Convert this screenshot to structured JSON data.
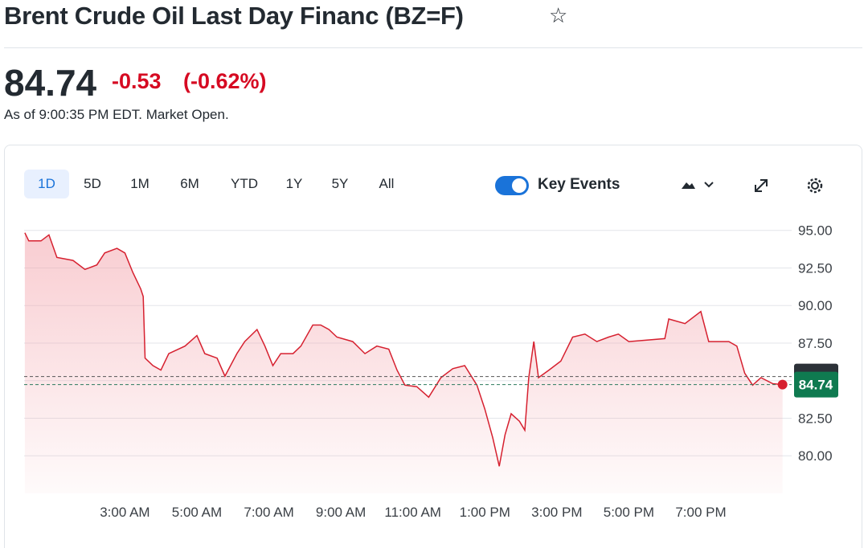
{
  "header": {
    "title": "Brent Crude Oil Last Day Financ (BZ=F)",
    "price": "84.74",
    "change": "-0.53",
    "change_percent": "(-0.62%)",
    "as_of": "As of 9:00:35 PM EDT. Market Open."
  },
  "toolbar": {
    "ranges": [
      "1D",
      "5D",
      "1M",
      "6M",
      "YTD",
      "1Y",
      "5Y",
      "All"
    ],
    "key_events": "Key Events"
  },
  "chart_data": {
    "type": "line",
    "color": "#d6202f",
    "grid": true,
    "series": [
      {
        "name": "BZ=F",
        "color": "#d6202f",
        "x": [
          0.22,
          0.33,
          0.67,
          0.89,
          1.11,
          1.56,
          1.89,
          2.22,
          2.44,
          2.78,
          3.0,
          3.22,
          3.44,
          3.51,
          3.56,
          3.78,
          4.0,
          4.22,
          4.67,
          5.0,
          5.22,
          5.56,
          5.78,
          6.11,
          6.33,
          6.67,
          6.89,
          7.11,
          7.33,
          7.67,
          7.89,
          8.22,
          8.44,
          8.67,
          8.89,
          9.33,
          9.67,
          10.0,
          10.33,
          10.56,
          10.78,
          11.11,
          11.44,
          11.78,
          12.11,
          12.44,
          12.78,
          13.0,
          13.22,
          13.4,
          13.56,
          13.73,
          13.96,
          14.11,
          14.22,
          14.36,
          14.49,
          14.78,
          15.11,
          15.44,
          15.78,
          16.11,
          16.44,
          16.71,
          17.0,
          18.0,
          18.11,
          18.56,
          19.0,
          19.22,
          19.78,
          20.0,
          20.22,
          20.44,
          20.67,
          21.0,
          21.27
        ],
        "values": [
          94.84,
          94.3,
          94.3,
          94.7,
          93.2,
          93.0,
          92.4,
          92.7,
          93.5,
          93.8,
          93.5,
          92.2,
          91.1,
          90.6,
          86.5,
          86.0,
          85.7,
          86.8,
          87.3,
          88.0,
          86.8,
          86.5,
          85.3,
          86.8,
          87.6,
          88.4,
          87.3,
          86.0,
          86.8,
          86.8,
          87.3,
          88.7,
          88.7,
          88.4,
          87.9,
          87.6,
          86.8,
          87.3,
          87.1,
          85.7,
          84.7,
          84.6,
          83.9,
          85.2,
          85.8,
          86.0,
          84.7,
          83.1,
          81.2,
          79.3,
          81.4,
          82.8,
          82.3,
          81.7,
          85.2,
          87.6,
          85.2,
          85.7,
          86.3,
          87.9,
          88.1,
          87.6,
          87.9,
          88.1,
          87.6,
          87.8,
          89.1,
          88.8,
          89.6,
          87.6,
          87.6,
          87.3,
          85.5,
          84.7,
          85.2,
          84.8,
          84.74
        ]
      }
    ],
    "current_price": 84.74,
    "reference_lines": [
      85.27,
      84.74
    ],
    "xlim": [
      0.2,
      21.3
    ],
    "xticks": [
      {
        "value": 3,
        "label": "3:00 AM"
      },
      {
        "value": 5,
        "label": "5:00 AM"
      },
      {
        "value": 7,
        "label": "7:00 AM"
      },
      {
        "value": 9,
        "label": "9:00 AM"
      },
      {
        "value": 11,
        "label": "11:00 AM"
      },
      {
        "value": 13,
        "label": "1:00 PM"
      },
      {
        "value": 15,
        "label": "3:00 PM"
      },
      {
        "value": 17,
        "label": "5:00 PM"
      },
      {
        "value": 19,
        "label": "7:00 PM"
      }
    ],
    "ylim": [
      77.5,
      96
    ],
    "yticks": [
      {
        "value": 80,
        "label": "80.00"
      },
      {
        "value": 82.5,
        "label": "82.50"
      },
      {
        "value": 85,
        "label": "85.00"
      },
      {
        "value": 87.5,
        "label": "87.50"
      },
      {
        "value": 90,
        "label": "90.00"
      },
      {
        "value": 92.5,
        "label": "92.50"
      },
      {
        "value": 95,
        "label": "95.00"
      }
    ]
  }
}
